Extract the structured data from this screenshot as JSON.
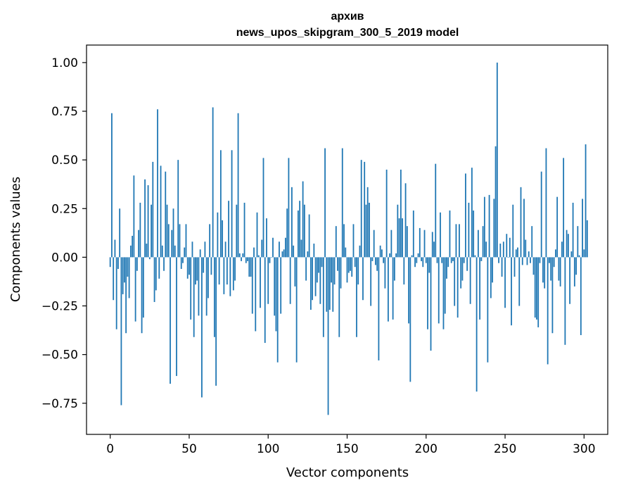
{
  "chart_data": {
    "type": "bar",
    "title_lines": [
      "архив",
      "news_upos_skipgram_300_5_2019 model"
    ],
    "xlabel": "Vector components",
    "ylabel": "Components values",
    "xlim": [
      -15,
      315
    ],
    "ylim": [
      -0.91,
      1.09
    ],
    "xticks": [
      0,
      50,
      100,
      150,
      200,
      250,
      300
    ],
    "xtick_labels": [
      "0",
      "50",
      "100",
      "150",
      "200",
      "250",
      "300"
    ],
    "yticks": [
      -0.75,
      -0.5,
      -0.25,
      0.0,
      0.25,
      0.5,
      0.75,
      1.0
    ],
    "ytick_labels": [
      "−0.75",
      "−0.50",
      "−0.25",
      "0.00",
      "0.25",
      "0.50",
      "0.75",
      "1.00"
    ],
    "grid": false,
    "bar_color": "#1f77b4",
    "x_start": 0,
    "values": [
      -0.05,
      0.74,
      -0.22,
      0.09,
      -0.37,
      -0.06,
      0.25,
      -0.76,
      -0.19,
      -0.13,
      -0.39,
      -0.1,
      -0.21,
      0.06,
      0.11,
      0.42,
      -0.33,
      -0.07,
      0.14,
      0.28,
      -0.39,
      -0.31,
      0.4,
      0.07,
      0.37,
      -0.01,
      0.27,
      0.49,
      -0.23,
      -0.17,
      0.76,
      -0.11,
      0.47,
      0.06,
      -0.07,
      0.44,
      0.27,
      0.17,
      -0.65,
      0.14,
      0.25,
      0.06,
      -0.61,
      0.5,
      0.17,
      -0.06,
      -0.03,
      0.05,
      0.17,
      -0.11,
      -0.09,
      -0.32,
      0.08,
      -0.41,
      -0.14,
      -0.12,
      -0.3,
      0.04,
      -0.72,
      -0.08,
      0.08,
      -0.3,
      -0.21,
      0.17,
      -0.09,
      0.77,
      -0.41,
      -0.66,
      0.23,
      -0.14,
      0.55,
      0.19,
      -0.19,
      0.08,
      -0.14,
      0.29,
      -0.2,
      0.55,
      -0.17,
      -0.12,
      0.27,
      0.74,
      0.02,
      -0.02,
      0.02,
      0.28,
      -0.03,
      -0.02,
      -0.1,
      -0.1,
      -0.29,
      0.05,
      -0.38,
      0.23,
      0.01,
      -0.26,
      0.09,
      0.51,
      -0.44,
      0.2,
      -0.24,
      -0.03,
      0.0,
      0.1,
      -0.3,
      -0.38,
      -0.54,
      0.08,
      -0.29,
      0.03,
      0.04,
      0.1,
      0.25,
      0.51,
      -0.24,
      0.36,
      0.06,
      -0.15,
      -0.54,
      0.24,
      0.29,
      0.09,
      0.39,
      0.27,
      -0.12,
      0.03,
      0.22,
      -0.27,
      -0.22,
      0.07,
      -0.2,
      -0.13,
      -0.08,
      -0.24,
      -0.05,
      -0.41,
      0.56,
      -0.28,
      -0.81,
      -0.27,
      -0.13,
      -0.28,
      -0.14,
      0.16,
      -0.07,
      -0.41,
      -0.16,
      0.56,
      0.17,
      0.05,
      -0.13,
      -0.08,
      -0.07,
      -0.1,
      0.17,
      -0.05,
      -0.41,
      -0.14,
      0.06,
      0.5,
      -0.22,
      0.49,
      0.27,
      0.36,
      0.28,
      -0.25,
      -0.02,
      0.14,
      -0.04,
      -0.07,
      -0.53,
      0.06,
      0.04,
      -0.03,
      -0.16,
      0.45,
      -0.33,
      0.02,
      0.14,
      -0.32,
      -0.12,
      0.02,
      0.27,
      0.2,
      0.45,
      0.2,
      -0.14,
      0.38,
      0.16,
      -0.34,
      -0.64,
      0.01,
      0.24,
      -0.05,
      -0.03,
      0.02,
      0.15,
      -0.02,
      -0.05,
      0.14,
      -0.03,
      -0.37,
      -0.08,
      -0.48,
      0.13,
      0.08,
      0.48,
      -0.03,
      -0.34,
      0.23,
      -0.03,
      -0.37,
      -0.29,
      -0.11,
      -0.05,
      0.24,
      -0.03,
      -0.02,
      -0.25,
      0.17,
      -0.31,
      0.17,
      -0.16,
      -0.12,
      -0.03,
      0.43,
      -0.07,
      0.28,
      -0.24,
      0.46,
      0.24,
      0.01,
      -0.69,
      0.14,
      -0.32,
      -0.02,
      0.16,
      0.31,
      0.08,
      -0.54,
      0.32,
      -0.21,
      -0.13,
      0.3,
      0.57,
      1.0,
      -0.03,
      0.07,
      -0.1,
      0.08,
      -0.26,
      0.12,
      0.0,
      0.1,
      -0.35,
      0.27,
      -0.1,
      0.04,
      0.05,
      -0.25,
      0.36,
      -0.04,
      0.3,
      0.09,
      -0.04,
      0.03,
      -0.03,
      0.16,
      -0.09,
      -0.31,
      -0.32,
      -0.36,
      -0.03,
      0.44,
      -0.13,
      -0.16,
      0.56,
      -0.55,
      -0.03,
      -0.12,
      -0.39,
      -0.05,
      0.04,
      0.31,
      -0.12,
      -0.15,
      0.08,
      0.51,
      -0.45,
      0.14,
      0.12,
      -0.24,
      0.03,
      0.28,
      -0.15,
      -0.09,
      0.16,
      0.01,
      -0.4,
      0.3,
      0.04,
      0.58,
      0.19
    ]
  }
}
